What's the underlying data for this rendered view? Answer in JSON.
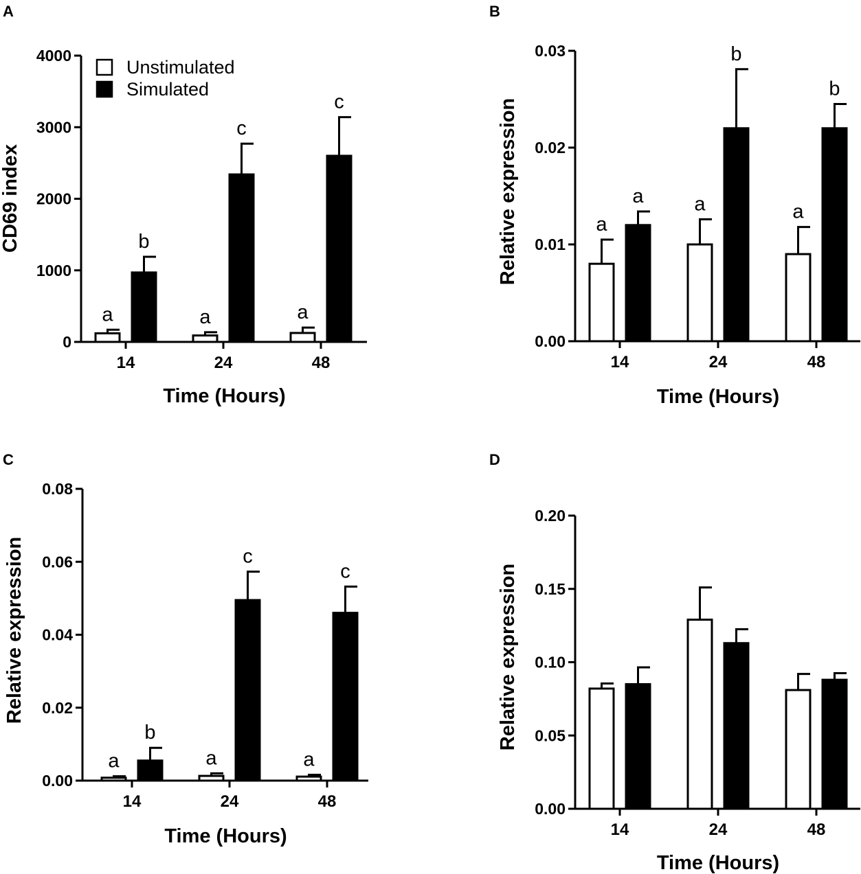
{
  "legend": {
    "unstimulated_label": "Unstimulated",
    "stimulated_label": "Simulated"
  },
  "colors": {
    "unstimulated_fill": "#ffffff",
    "stimulated_fill": "#000000",
    "stroke": "#000000"
  },
  "chart_data": [
    {
      "panel": "A",
      "type": "bar",
      "categories": [
        "14",
        "24",
        "48"
      ],
      "xlabel": "Time (Hours)",
      "ylabel": "CD69 index",
      "ylim": [
        0,
        4000
      ],
      "yticks": [
        0,
        1000,
        2000,
        3000,
        4000
      ],
      "ytick_labels": [
        "0",
        "1000",
        "2000",
        "3000",
        "4000"
      ],
      "legend_position": "top-left",
      "series": [
        {
          "name": "Unstimulated",
          "values": [
            120,
            90,
            125
          ],
          "errors": [
            50,
            45,
            75
          ],
          "sig_labels": [
            "a",
            "a",
            "a"
          ]
        },
        {
          "name": "Simulated",
          "values": [
            970,
            2340,
            2600
          ],
          "errors": [
            220,
            430,
            540
          ],
          "sig_labels": [
            "b",
            "c",
            "c"
          ]
        }
      ]
    },
    {
      "panel": "B",
      "type": "bar",
      "categories": [
        "14",
        "24",
        "48"
      ],
      "xlabel": "Time (Hours)",
      "ylabel": "Relative expression",
      "ylim": [
        0,
        0.03
      ],
      "yticks": [
        0,
        0.01,
        0.02,
        0.03
      ],
      "ytick_labels": [
        "0.00",
        "0.01",
        "0.02",
        "0.03"
      ],
      "series": [
        {
          "name": "Unstimulated",
          "values": [
            0.008,
            0.01,
            0.009
          ],
          "errors": [
            0.0025,
            0.0026,
            0.0028
          ],
          "sig_labels": [
            "a",
            "a",
            "a"
          ]
        },
        {
          "name": "Simulated",
          "values": [
            0.012,
            0.022,
            0.022
          ],
          "errors": [
            0.0014,
            0.0061,
            0.0025
          ],
          "sig_labels": [
            "a",
            "b",
            "b"
          ]
        }
      ]
    },
    {
      "panel": "C",
      "type": "bar",
      "categories": [
        "14",
        "24",
        "48"
      ],
      "xlabel": "Time (Hours)",
      "ylabel": "Relative expression",
      "ylim": [
        0,
        0.08
      ],
      "yticks": [
        0,
        0.02,
        0.04,
        0.06,
        0.08
      ],
      "ytick_labels": [
        "0.00",
        "0.02",
        "0.04",
        "0.06",
        "0.08"
      ],
      "series": [
        {
          "name": "Unstimulated",
          "values": [
            0.0008,
            0.0013,
            0.0011
          ],
          "errors": [
            0.0004,
            0.0007,
            0.0005
          ],
          "sig_labels": [
            "a",
            "a",
            "a"
          ]
        },
        {
          "name": "Simulated",
          "values": [
            0.0055,
            0.0495,
            0.046
          ],
          "errors": [
            0.0035,
            0.0078,
            0.0072
          ],
          "sig_labels": [
            "b",
            "c",
            "c"
          ]
        }
      ]
    },
    {
      "panel": "D",
      "type": "bar",
      "categories": [
        "14",
        "24",
        "48"
      ],
      "xlabel": "Time (Hours)",
      "ylabel": "Relative expression",
      "ylim": [
        0,
        0.2
      ],
      "yticks": [
        0,
        0.05,
        0.1,
        0.15,
        0.2
      ],
      "ytick_labels": [
        "0.00",
        "0.05",
        "0.10",
        "0.15",
        "0.20"
      ],
      "series": [
        {
          "name": "Unstimulated",
          "values": [
            0.082,
            0.129,
            0.081
          ],
          "errors": [
            0.0035,
            0.022,
            0.011
          ],
          "sig_labels": [
            "",
            "",
            ""
          ]
        },
        {
          "name": "Simulated",
          "values": [
            0.085,
            0.113,
            0.088
          ],
          "errors": [
            0.0115,
            0.0095,
            0.0045
          ],
          "sig_labels": [
            "",
            "",
            ""
          ]
        }
      ]
    }
  ]
}
